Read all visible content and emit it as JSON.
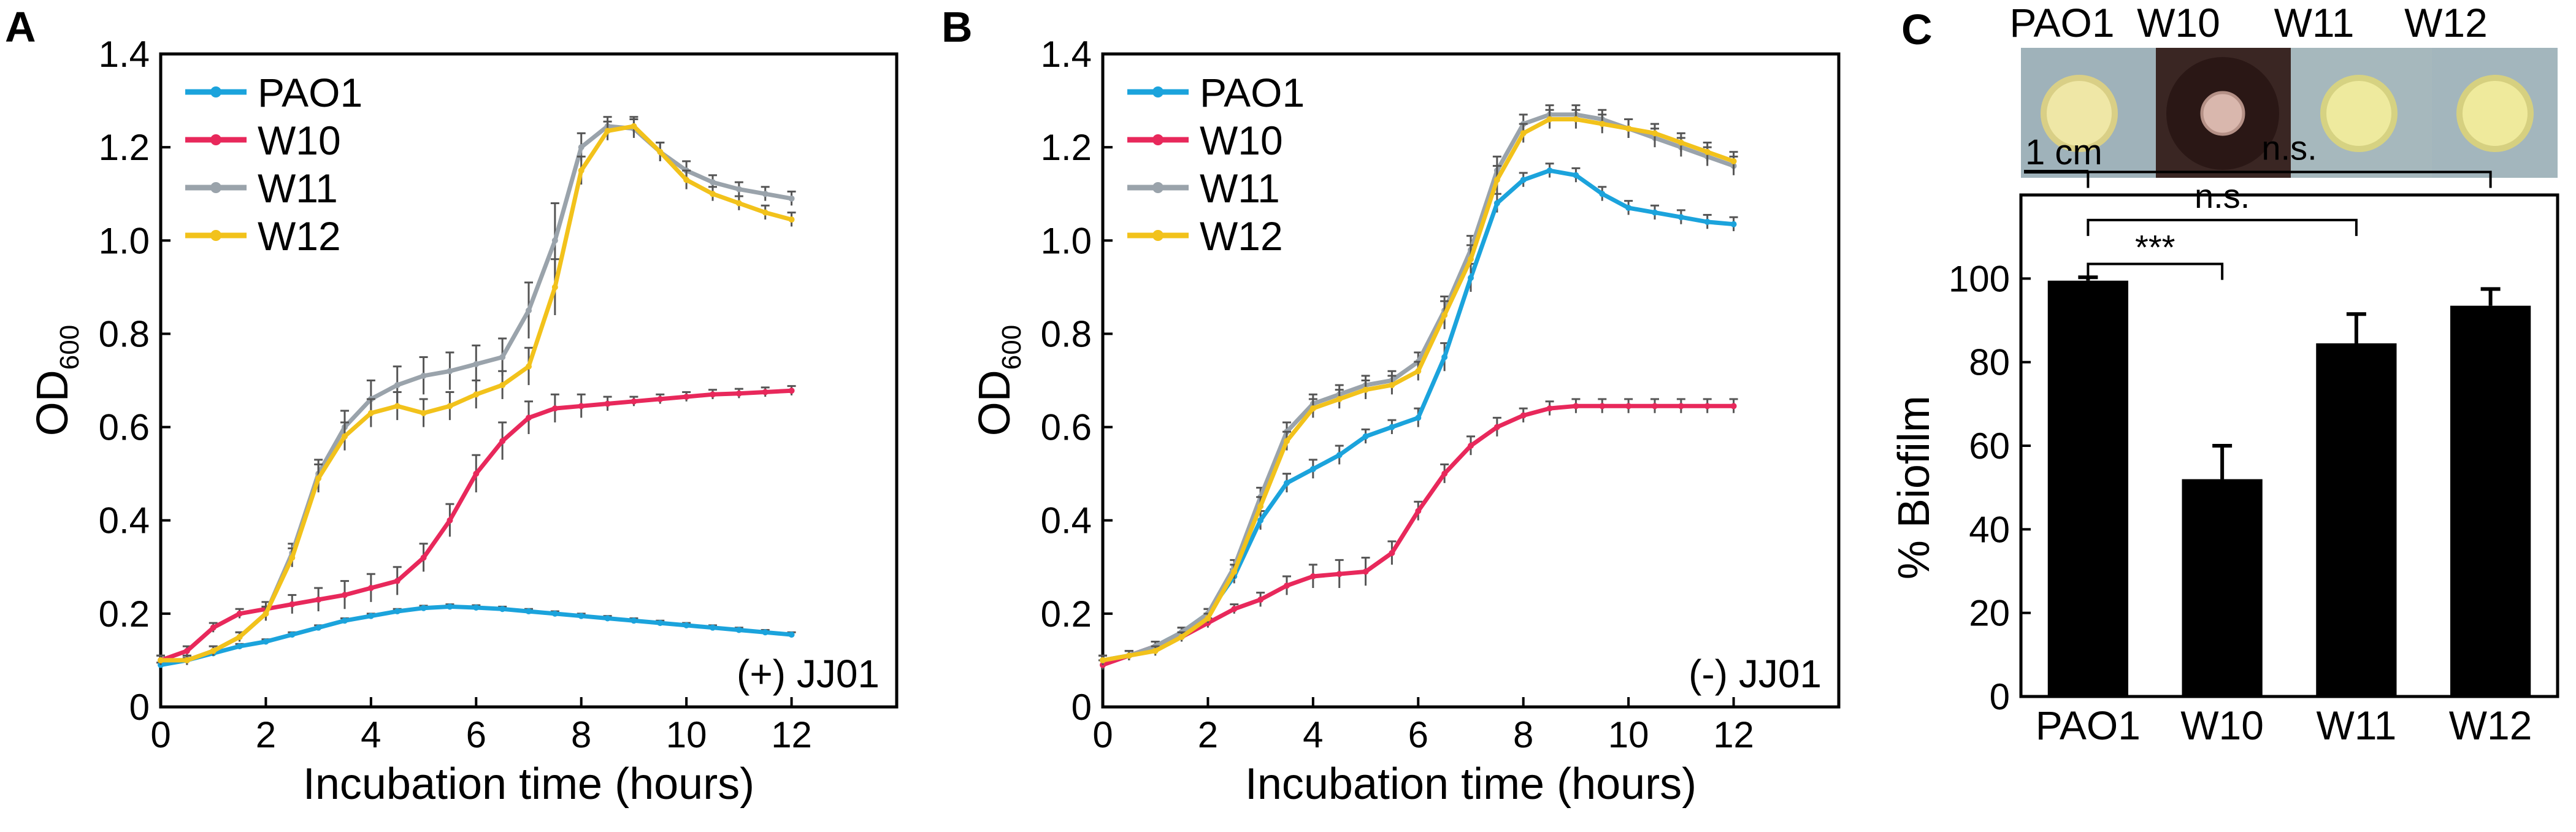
{
  "colors": {
    "PAO1": "#1ba3dc",
    "W10": "#e8285b",
    "W11": "#9aa3ab",
    "W12": "#f2c21b",
    "bar": "#000000",
    "axis": "#000000"
  },
  "icons": {
    "scale_bar": "scale-bar-icon"
  },
  "panels": {
    "A": {
      "letter": "A"
    },
    "B": {
      "letter": "B"
    },
    "C": {
      "letter": "C"
    }
  },
  "photo": {
    "labels": [
      "PAO1",
      "W10",
      "W11",
      "W12"
    ],
    "scale_label": "1 cm"
  },
  "chart_data": [
    {
      "id": "A",
      "type": "line",
      "title": "",
      "annotation": "(+) JJ01",
      "xlabel": "Incubation time (hours)",
      "ylabel_main": "OD",
      "ylabel_sub": "600",
      "xlim": [
        0,
        14
      ],
      "ylim": [
        0,
        1.4
      ],
      "xticks": [
        0,
        2,
        4,
        6,
        8,
        10,
        12
      ],
      "yticks": [
        0,
        0.2,
        0.4,
        0.6,
        0.8,
        1.0,
        1.2,
        1.4
      ],
      "ytick_labels": [
        "0",
        "0.2",
        "0.4",
        "0.6",
        "0.8",
        "1.0",
        "1.2",
        "1.4"
      ],
      "legend_position": "top-left",
      "series": [
        {
          "name": "PAO1",
          "x": [
            0,
            0.5,
            1,
            1.5,
            2,
            2.5,
            3,
            3.5,
            4,
            4.5,
            5,
            5.5,
            6,
            6.5,
            7,
            7.5,
            8,
            8.5,
            9,
            9.5,
            10,
            10.5,
            11,
            11.5,
            12
          ],
          "y": [
            0.09,
            0.1,
            0.115,
            0.13,
            0.14,
            0.155,
            0.17,
            0.185,
            0.195,
            0.205,
            0.212,
            0.215,
            0.213,
            0.21,
            0.205,
            0.2,
            0.195,
            0.19,
            0.185,
            0.18,
            0.175,
            0.17,
            0.165,
            0.16,
            0.155
          ],
          "err": [
            0.005,
            0.005,
            0.005,
            0.005,
            0.005,
            0.005,
            0.005,
            0.005,
            0.005,
            0.005,
            0.005,
            0.005,
            0.005,
            0.005,
            0.005,
            0.005,
            0.005,
            0.005,
            0.005,
            0.005,
            0.005,
            0.005,
            0.005,
            0.005,
            0.005
          ]
        },
        {
          "name": "W10",
          "x": [
            0,
            0.5,
            1,
            1.5,
            2,
            2.5,
            3,
            3.5,
            4,
            4.5,
            5,
            5.5,
            6,
            6.5,
            7,
            7.5,
            8,
            8.5,
            9,
            9.5,
            10,
            10.5,
            11,
            11.5,
            12
          ],
          "y": [
            0.1,
            0.12,
            0.17,
            0.2,
            0.21,
            0.22,
            0.23,
            0.24,
            0.255,
            0.27,
            0.32,
            0.4,
            0.5,
            0.57,
            0.62,
            0.64,
            0.645,
            0.65,
            0.655,
            0.66,
            0.665,
            0.67,
            0.672,
            0.675,
            0.678
          ],
          "err": [
            0.01,
            0.01,
            0.01,
            0.01,
            0.015,
            0.02,
            0.025,
            0.03,
            0.03,
            0.03,
            0.03,
            0.035,
            0.04,
            0.04,
            0.035,
            0.03,
            0.025,
            0.015,
            0.01,
            0.01,
            0.01,
            0.01,
            0.01,
            0.01,
            0.01
          ]
        },
        {
          "name": "W11",
          "x": [
            0,
            0.5,
            1,
            1.5,
            2,
            2.5,
            3,
            3.5,
            4,
            4.5,
            5,
            5.5,
            6,
            6.5,
            7,
            7.5,
            8,
            8.5,
            9,
            9.5,
            10,
            10.5,
            11,
            11.5,
            12
          ],
          "y": [
            0.1,
            0.1,
            0.12,
            0.15,
            0.2,
            0.33,
            0.5,
            0.6,
            0.66,
            0.69,
            0.71,
            0.72,
            0.735,
            0.75,
            0.85,
            1.0,
            1.2,
            1.245,
            1.24,
            1.19,
            1.15,
            1.125,
            1.11,
            1.1,
            1.09
          ],
          "err": [
            0.01,
            0.01,
            0.01,
            0.01,
            0.015,
            0.02,
            0.03,
            0.035,
            0.04,
            0.04,
            0.04,
            0.04,
            0.04,
            0.04,
            0.06,
            0.08,
            0.03,
            0.02,
            0.02,
            0.02,
            0.02,
            0.015,
            0.015,
            0.015,
            0.015
          ]
        },
        {
          "name": "W12",
          "x": [
            0,
            0.5,
            1,
            1.5,
            2,
            2.5,
            3,
            3.5,
            4,
            4.5,
            5,
            5.5,
            6,
            6.5,
            7,
            7.5,
            8,
            8.5,
            9,
            9.5,
            10,
            10.5,
            11,
            11.5,
            12
          ],
          "y": [
            0.1,
            0.1,
            0.12,
            0.15,
            0.2,
            0.32,
            0.49,
            0.58,
            0.63,
            0.645,
            0.63,
            0.645,
            0.67,
            0.69,
            0.73,
            0.9,
            1.15,
            1.235,
            1.245,
            1.19,
            1.13,
            1.1,
            1.08,
            1.06,
            1.045
          ],
          "err": [
            0.01,
            0.01,
            0.01,
            0.01,
            0.015,
            0.02,
            0.03,
            0.03,
            0.03,
            0.03,
            0.03,
            0.03,
            0.03,
            0.03,
            0.04,
            0.06,
            0.03,
            0.02,
            0.02,
            0.02,
            0.02,
            0.015,
            0.015,
            0.015,
            0.015
          ]
        }
      ]
    },
    {
      "id": "B",
      "type": "line",
      "title": "",
      "annotation": "(-) JJ01",
      "xlabel": "Incubation time (hours)",
      "ylabel_main": "OD",
      "ylabel_sub": "600",
      "xlim": [
        0,
        14
      ],
      "ylim": [
        0,
        1.4
      ],
      "xticks": [
        0,
        2,
        4,
        6,
        8,
        10,
        12
      ],
      "yticks": [
        0,
        0.2,
        0.4,
        0.6,
        0.8,
        1.0,
        1.2,
        1.4
      ],
      "ytick_labels": [
        "0",
        "0.2",
        "0.4",
        "0.6",
        "0.8",
        "1.0",
        "1.2",
        "1.4"
      ],
      "legend_position": "top-left",
      "series": [
        {
          "name": "PAO1",
          "x": [
            0,
            0.5,
            1,
            1.5,
            2,
            2.5,
            3,
            3.5,
            4,
            4.5,
            5,
            5.5,
            6,
            6.5,
            7,
            7.5,
            8,
            8.5,
            9,
            9.5,
            10,
            10.5,
            11,
            11.5,
            12
          ],
          "y": [
            0.1,
            0.11,
            0.13,
            0.16,
            0.2,
            0.28,
            0.4,
            0.48,
            0.51,
            0.54,
            0.58,
            0.6,
            0.62,
            0.75,
            0.92,
            1.08,
            1.13,
            1.15,
            1.14,
            1.1,
            1.07,
            1.06,
            1.05,
            1.04,
            1.035
          ],
          "err": [
            0.01,
            0.01,
            0.01,
            0.01,
            0.01,
            0.015,
            0.02,
            0.02,
            0.02,
            0.02,
            0.015,
            0.015,
            0.02,
            0.03,
            0.03,
            0.02,
            0.015,
            0.015,
            0.015,
            0.015,
            0.015,
            0.015,
            0.015,
            0.015,
            0.015
          ]
        },
        {
          "name": "W10",
          "x": [
            0,
            0.5,
            1,
            1.5,
            2,
            2.5,
            3,
            3.5,
            4,
            4.5,
            5,
            5.5,
            6,
            6.5,
            7,
            7.5,
            8,
            8.5,
            9,
            9.5,
            10,
            10.5,
            11,
            11.5,
            12
          ],
          "y": [
            0.09,
            0.11,
            0.13,
            0.15,
            0.18,
            0.21,
            0.23,
            0.26,
            0.28,
            0.285,
            0.29,
            0.33,
            0.42,
            0.5,
            0.56,
            0.6,
            0.625,
            0.64,
            0.645,
            0.645,
            0.645,
            0.645,
            0.645,
            0.645,
            0.645
          ],
          "err": [
            0.01,
            0.01,
            0.01,
            0.01,
            0.01,
            0.01,
            0.015,
            0.02,
            0.025,
            0.03,
            0.03,
            0.025,
            0.02,
            0.02,
            0.02,
            0.02,
            0.015,
            0.015,
            0.015,
            0.015,
            0.015,
            0.015,
            0.015,
            0.015,
            0.015
          ]
        },
        {
          "name": "W11",
          "x": [
            0,
            0.5,
            1,
            1.5,
            2,
            2.5,
            3,
            3.5,
            4,
            4.5,
            5,
            5.5,
            6,
            6.5,
            7,
            7.5,
            8,
            8.5,
            9,
            9.5,
            10,
            10.5,
            11,
            11.5,
            12
          ],
          "y": [
            0.1,
            0.11,
            0.13,
            0.16,
            0.2,
            0.3,
            0.45,
            0.59,
            0.65,
            0.67,
            0.69,
            0.7,
            0.74,
            0.85,
            0.98,
            1.15,
            1.25,
            1.27,
            1.27,
            1.26,
            1.24,
            1.22,
            1.2,
            1.18,
            1.16
          ],
          "err": [
            0.01,
            0.01,
            0.01,
            0.01,
            0.01,
            0.015,
            0.02,
            0.02,
            0.02,
            0.02,
            0.02,
            0.02,
            0.02,
            0.03,
            0.03,
            0.03,
            0.02,
            0.02,
            0.02,
            0.02,
            0.02,
            0.02,
            0.02,
            0.02,
            0.02
          ]
        },
        {
          "name": "W12",
          "x": [
            0,
            0.5,
            1,
            1.5,
            2,
            2.5,
            3,
            3.5,
            4,
            4.5,
            5,
            5.5,
            6,
            6.5,
            7,
            7.5,
            8,
            8.5,
            9,
            9.5,
            10,
            10.5,
            11,
            11.5,
            12
          ],
          "y": [
            0.1,
            0.11,
            0.12,
            0.15,
            0.19,
            0.29,
            0.43,
            0.57,
            0.64,
            0.66,
            0.68,
            0.69,
            0.72,
            0.84,
            0.96,
            1.13,
            1.23,
            1.26,
            1.26,
            1.25,
            1.24,
            1.23,
            1.21,
            1.19,
            1.17
          ],
          "err": [
            0.01,
            0.01,
            0.01,
            0.01,
            0.01,
            0.015,
            0.02,
            0.02,
            0.02,
            0.02,
            0.02,
            0.02,
            0.02,
            0.03,
            0.03,
            0.03,
            0.02,
            0.02,
            0.02,
            0.02,
            0.02,
            0.02,
            0.02,
            0.02,
            0.02
          ]
        }
      ]
    },
    {
      "id": "C",
      "type": "bar",
      "title": "",
      "xlabel": "",
      "ylabel": "% Biofilm",
      "ylim": [
        0,
        120
      ],
      "yticks": [
        0,
        20,
        40,
        60,
        80,
        100
      ],
      "categories": [
        "PAO1",
        "W10",
        "W11",
        "W12"
      ],
      "values": [
        99.5,
        52,
        84.5,
        93.5
      ],
      "errors": [
        0.8,
        8,
        7,
        4
      ],
      "significance": [
        {
          "from": "PAO1",
          "to": "W10",
          "label": "***"
        },
        {
          "from": "PAO1",
          "to": "W11",
          "label": "n.s."
        },
        {
          "from": "PAO1",
          "to": "W12",
          "label": "n.s."
        }
      ]
    }
  ]
}
